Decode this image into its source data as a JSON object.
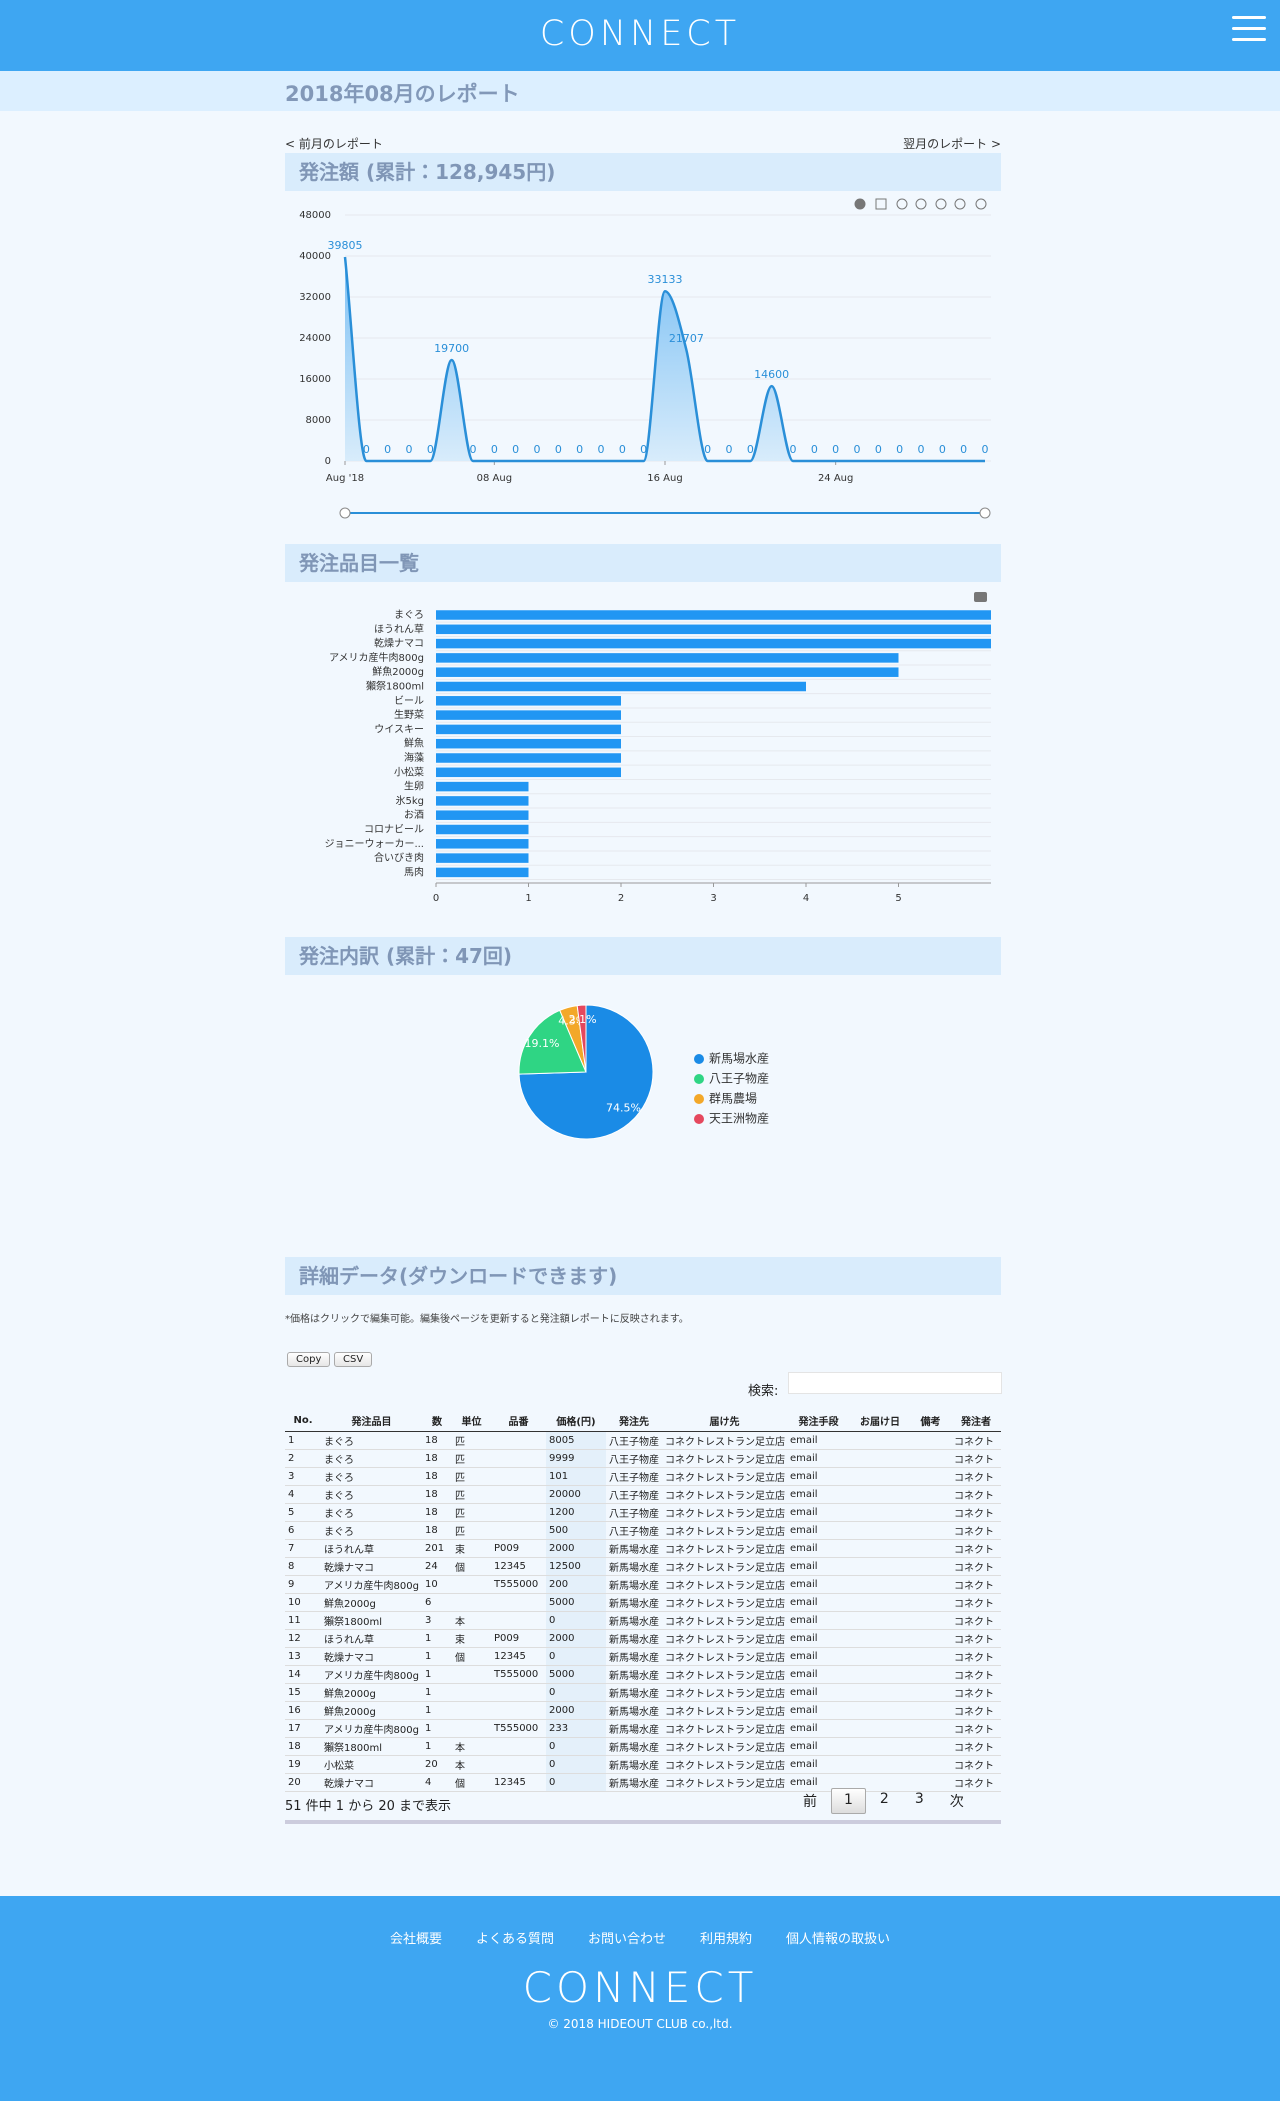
{
  "header": {
    "logo": "CONNECT"
  },
  "report_title": "2018年08月のレポート",
  "nav": {
    "prev": "< 前月のレポート",
    "next": "翌月のレポート >"
  },
  "chart_data": [
    {
      "type": "area",
      "title": "発注額 (累計：128,945円)",
      "color": "#2a8fd8",
      "x": [
        "2018-08-01",
        "2018-08-02",
        "2018-08-03",
        "2018-08-04",
        "2018-08-05",
        "2018-08-06",
        "2018-08-07",
        "2018-08-08",
        "2018-08-09",
        "2018-08-10",
        "2018-08-11",
        "2018-08-12",
        "2018-08-13",
        "2018-08-14",
        "2018-08-15",
        "2018-08-16",
        "2018-08-17",
        "2018-08-18",
        "2018-08-19",
        "2018-08-20",
        "2018-08-21",
        "2018-08-22",
        "2018-08-23",
        "2018-08-24",
        "2018-08-25",
        "2018-08-26",
        "2018-08-27",
        "2018-08-28",
        "2018-08-29",
        "2018-08-30",
        "2018-08-31"
      ],
      "values": [
        39805,
        0,
        0,
        0,
        0,
        19700,
        0,
        0,
        0,
        0,
        0,
        0,
        0,
        0,
        0,
        33133,
        21707,
        0,
        0,
        0,
        14600,
        0,
        0,
        0,
        0,
        0,
        0,
        0,
        0,
        0,
        0
      ],
      "xlim": [
        "2018-08-01",
        "2018-08-31"
      ],
      "xticks": [
        {
          "value": "2018-08-01",
          "label": "Aug '18"
        },
        {
          "value": "2018-08-08",
          "label": "08 Aug"
        },
        {
          "value": "2018-08-16",
          "label": "16 Aug"
        },
        {
          "value": "2018-08-24",
          "label": "24 Aug"
        }
      ],
      "ylim": [
        0,
        48000
      ],
      "yticks": [
        0,
        8000,
        16000,
        24000,
        32000,
        40000,
        48000
      ],
      "grid": true
    },
    {
      "type": "hbar",
      "title": "発注品目一覧",
      "color": "#2196f3",
      "categories": [
        "まぐろ",
        "ほうれん草",
        "乾燥ナマコ",
        "アメリカ産牛肉800g",
        "鮮魚2000g",
        "獺祭1800ml",
        "ビール",
        "生野菜",
        "ウイスキー",
        "鮮魚",
        "海藻",
        "小松菜",
        "生卵",
        "氷5kg",
        "お酒",
        "コロナビール",
        "ジョニーウォーカー...",
        "合いびき肉",
        "馬肉"
      ],
      "values": [
        6,
        6,
        6,
        5,
        5,
        4,
        2,
        2,
        2,
        2,
        2,
        2,
        1,
        1,
        1,
        1,
        1,
        1,
        1
      ],
      "xlim": [
        0,
        6
      ],
      "xticks": [
        0,
        1,
        2,
        3,
        4,
        5
      ]
    },
    {
      "type": "pie",
      "title": "発注内訳 (累計：47回)",
      "categories": [
        "新馬場水産",
        "八王子物産",
        "群馬農場",
        "天王洲物産"
      ],
      "values": [
        74.5,
        19.1,
        4.3,
        2.1
      ],
      "value_labels": [
        "74.5%",
        "19.1%",
        "4.3%",
        "2.1%"
      ],
      "colors": [
        "#1a8be6",
        "#2fd584",
        "#f3a829",
        "#e5485e"
      ]
    }
  ],
  "details": {
    "title": "詳細データ(ダウンロードできます)",
    "note": "*価格はクリックで編集可能。編集後ページを更新すると発注額レポートに反映されます。",
    "buttons": [
      "Copy",
      "CSV"
    ],
    "search_label": "検索:",
    "columns": [
      "No.",
      "発注品目",
      "数",
      "単位",
      "品番",
      "価格(円)",
      "発注先",
      "届け先",
      "発注手段",
      "お届け日",
      "備考",
      "発注者"
    ],
    "rows": [
      [
        "1",
        "まぐろ",
        "18",
        "匹",
        null,
        "8005",
        "八王子物産",
        "コネクトレストラン足立店",
        "email",
        null,
        null,
        "コネクト"
      ],
      [
        "2",
        "まぐろ",
        "18",
        "匹",
        null,
        "9999",
        "八王子物産",
        "コネクトレストラン足立店",
        "email",
        null,
        null,
        "コネクト"
      ],
      [
        "3",
        "まぐろ",
        "18",
        "匹",
        null,
        "101",
        "八王子物産",
        "コネクトレストラン足立店",
        "email",
        null,
        null,
        "コネクト"
      ],
      [
        "4",
        "まぐろ",
        "18",
        "匹",
        null,
        "20000",
        "八王子物産",
        "コネクトレストラン足立店",
        "email",
        null,
        null,
        "コネクト"
      ],
      [
        "5",
        "まぐろ",
        "18",
        "匹",
        null,
        "1200",
        "八王子物産",
        "コネクトレストラン足立店",
        "email",
        null,
        null,
        "コネクト"
      ],
      [
        "6",
        "まぐろ",
        "18",
        "匹",
        null,
        "500",
        "八王子物産",
        "コネクトレストラン足立店",
        "email",
        null,
        null,
        "コネクト"
      ],
      [
        "7",
        "ほうれん草",
        "201",
        "束",
        "P009",
        "2000",
        "新馬場水産",
        "コネクトレストラン足立店",
        "email",
        null,
        null,
        "コネクト"
      ],
      [
        "8",
        "乾燥ナマコ",
        "24",
        "個",
        "12345",
        "12500",
        "新馬場水産",
        "コネクトレストラン足立店",
        "email",
        null,
        null,
        "コネクト"
      ],
      [
        "9",
        "アメリカ産牛肉800g",
        "10",
        null,
        "T555000",
        "200",
        "新馬場水産",
        "コネクトレストラン足立店",
        "email",
        null,
        null,
        "コネクト"
      ],
      [
        "10",
        "鮮魚2000g",
        "6",
        null,
        null,
        "5000",
        "新馬場水産",
        "コネクトレストラン足立店",
        "email",
        null,
        null,
        "コネクト"
      ],
      [
        "11",
        "獺祭1800ml",
        "3",
        "本",
        null,
        "0",
        "新馬場水産",
        "コネクトレストラン足立店",
        "email",
        null,
        null,
        "コネクト"
      ],
      [
        "12",
        "ほうれん草",
        "1",
        "束",
        "P009",
        "2000",
        "新馬場水産",
        "コネクトレストラン足立店",
        "email",
        null,
        null,
        "コネクト"
      ],
      [
        "13",
        "乾燥ナマコ",
        "1",
        "個",
        "12345",
        "0",
        "新馬場水産",
        "コネクトレストラン足立店",
        "email",
        null,
        null,
        "コネクト"
      ],
      [
        "14",
        "アメリカ産牛肉800g",
        "1",
        null,
        "T555000",
        "5000",
        "新馬場水産",
        "コネクトレストラン足立店",
        "email",
        null,
        null,
        "コネクト"
      ],
      [
        "15",
        "鮮魚2000g",
        "1",
        null,
        null,
        "0",
        "新馬場水産",
        "コネクトレストラン足立店",
        "email",
        null,
        null,
        "コネクト"
      ],
      [
        "16",
        "鮮魚2000g",
        "1",
        null,
        null,
        "2000",
        "新馬場水産",
        "コネクトレストラン足立店",
        "email",
        null,
        null,
        "コネクト"
      ],
      [
        "17",
        "アメリカ産牛肉800g",
        "1",
        null,
        "T555000",
        "233",
        "新馬場水産",
        "コネクトレストラン足立店",
        "email",
        null,
        null,
        "コネクト"
      ],
      [
        "18",
        "獺祭1800ml",
        "1",
        "本",
        null,
        "0",
        "新馬場水産",
        "コネクトレストラン足立店",
        "email",
        null,
        null,
        "コネクト"
      ],
      [
        "19",
        "小松菜",
        "20",
        "本",
        null,
        "0",
        "新馬場水産",
        "コネクトレストラン足立店",
        "email",
        null,
        null,
        "コネクト"
      ],
      [
        "20",
        "乾燥ナマコ",
        "4",
        "個",
        "12345",
        "0",
        "新馬場水産",
        "コネクトレストラン足立店",
        "email",
        null,
        null,
        "コネクト"
      ]
    ],
    "info": "51 件中 1 から 20 まで表示",
    "pagination": [
      "前",
      "1",
      "2",
      "3",
      "次"
    ]
  },
  "footer": {
    "links": [
      "会社概要",
      "よくある質問",
      "お問い合わせ",
      "利用規約",
      "個人情報の取扱い"
    ],
    "logo": "CONNECT",
    "copyright": "© 2018 HIDEOUT CLUB co.,ltd."
  }
}
